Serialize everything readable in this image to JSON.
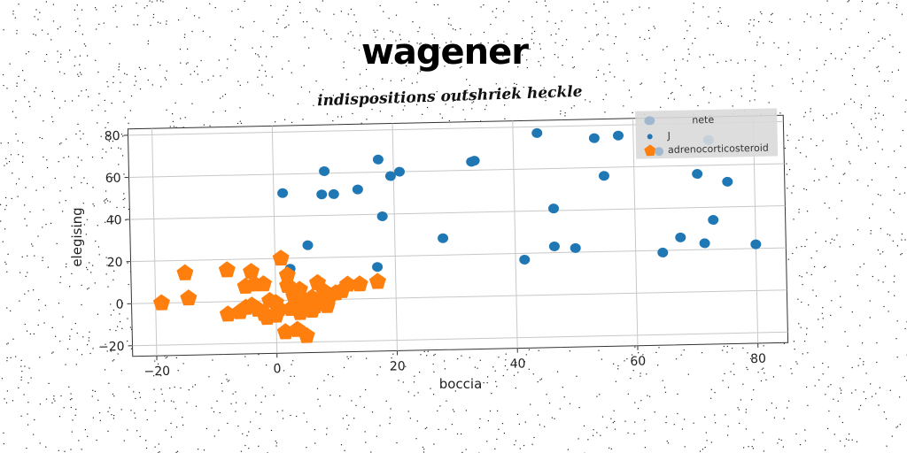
{
  "chart_data": {
    "type": "scatter",
    "title": "wagener",
    "subtitle": "indispositions outshriek heckle",
    "xlabel": "boccia",
    "ylabel": "elegising",
    "xlim": [
      -24,
      85
    ],
    "ylim": [
      -25,
      83
    ],
    "xticks": [
      "−20",
      "0",
      "20",
      "40",
      "60",
      "80"
    ],
    "yticks": [
      "−20",
      "0",
      "20",
      "40",
      "60",
      "80"
    ],
    "grid": true,
    "legend_position": "top-right",
    "legend": [
      "nete",
      "J",
      "adrenocorticosteroid"
    ],
    "series": [
      {
        "name": "J",
        "marker": "circle",
        "color": "#1f77b4",
        "points": [
          [
            1.5,
            51
          ],
          [
            8.5,
            61
          ],
          [
            8,
            50
          ],
          [
            10,
            50
          ],
          [
            14,
            52
          ],
          [
            17.5,
            66
          ],
          [
            19.5,
            58
          ],
          [
            21,
            60
          ],
          [
            18,
            39
          ],
          [
            5.5,
            26
          ],
          [
            2.5,
            15
          ],
          [
            17,
            15
          ],
          [
            28,
            28
          ],
          [
            33,
            64
          ],
          [
            33.5,
            64.5
          ],
          [
            44,
            77
          ],
          [
            46.5,
            41
          ],
          [
            41.5,
            17
          ],
          [
            46.5,
            23
          ],
          [
            50,
            22
          ],
          [
            53.5,
            74
          ],
          [
            55,
            56
          ],
          [
            57.5,
            75
          ],
          [
            64.5,
            19
          ],
          [
            67.5,
            26
          ],
          [
            70.5,
            56
          ],
          [
            71.5,
            23
          ],
          [
            72.5,
            72
          ],
          [
            73,
            34
          ],
          [
            75.5,
            52
          ],
          [
            80,
            22
          ]
        ]
      },
      {
        "name": "adrenocorticosteroid",
        "marker": "pentagon",
        "color": "#ff7f0e",
        "points": [
          [
            -19,
            0
          ],
          [
            -15,
            14
          ],
          [
            -14.5,
            2
          ],
          [
            -8,
            15
          ],
          [
            -8,
            -6
          ],
          [
            -6,
            -5
          ],
          [
            -5,
            7
          ],
          [
            -4,
            14
          ],
          [
            -3.5,
            8
          ],
          [
            -4,
            -2
          ],
          [
            -3,
            -4
          ],
          [
            -2,
            8
          ],
          [
            -2,
            -6
          ],
          [
            -1.5,
            -8
          ],
          [
            0,
            -1
          ],
          [
            0.5,
            -4
          ],
          [
            1,
            20
          ],
          [
            1.5,
            -15
          ],
          [
            2,
            12
          ],
          [
            2,
            7
          ],
          [
            2.5,
            -4
          ],
          [
            3,
            2
          ],
          [
            3,
            -3
          ],
          [
            3.5,
            -14
          ],
          [
            4,
            -6
          ],
          [
            4.5,
            -2
          ],
          [
            5,
            -17
          ],
          [
            5.5,
            -3
          ],
          [
            6,
            -5
          ],
          [
            6.5,
            -3
          ],
          [
            7,
            8
          ],
          [
            7.5,
            0
          ],
          [
            8,
            4
          ],
          [
            8.5,
            -3
          ],
          [
            9,
            2
          ],
          [
            10,
            3
          ],
          [
            11,
            4
          ],
          [
            12,
            7
          ],
          [
            14,
            7
          ],
          [
            17,
            8
          ],
          [
            -1,
            0
          ],
          [
            4,
            5
          ],
          [
            6,
            1
          ],
          [
            0,
            -7
          ],
          [
            -5,
            -3
          ]
        ]
      }
    ]
  }
}
